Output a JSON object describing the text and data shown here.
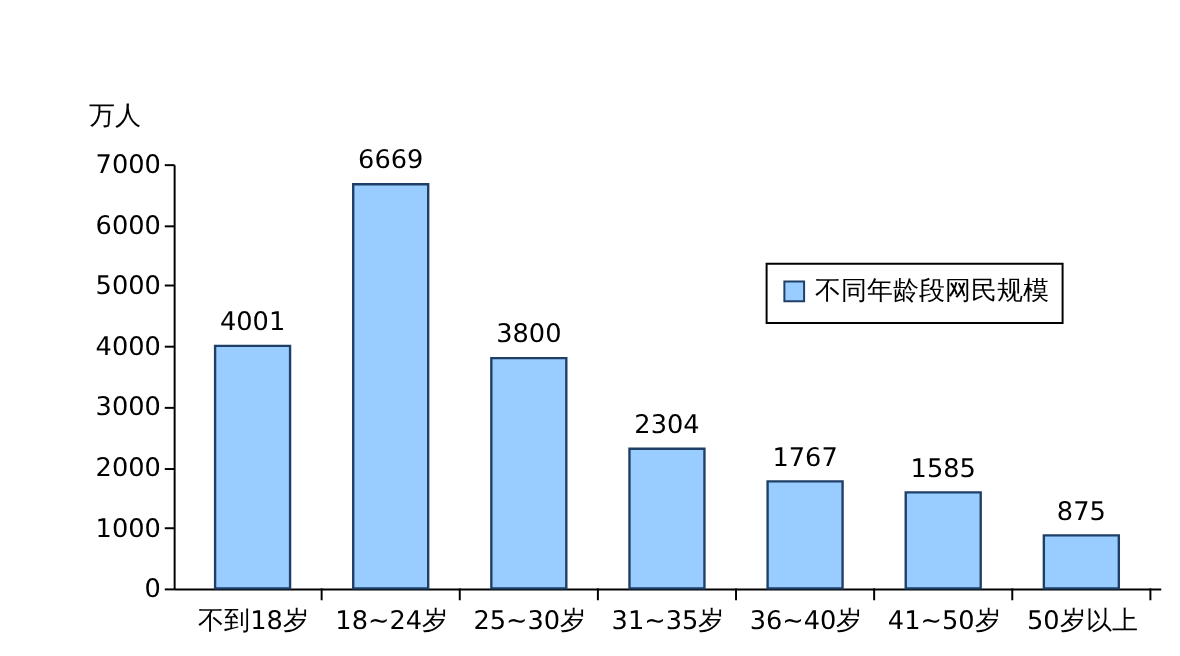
{
  "chart_data": {
    "type": "bar",
    "ylabel": "万人",
    "categories": [
      "不到18岁",
      "18~24岁",
      "25~30岁",
      "31~35岁",
      "36~40岁",
      "41~50岁",
      "50岁以上"
    ],
    "series": [
      {
        "name": "不同年龄段网民规模",
        "color": "#99ccff",
        "values": [
          4001,
          6669,
          3800,
          2304,
          1767,
          1585,
          875
        ]
      }
    ],
    "ylim": [
      0,
      7000
    ],
    "yticks": [
      0,
      1000,
      2000,
      3000,
      4000,
      5000,
      6000,
      7000
    ],
    "data_labels": true,
    "grid": false,
    "legend": "top right"
  }
}
